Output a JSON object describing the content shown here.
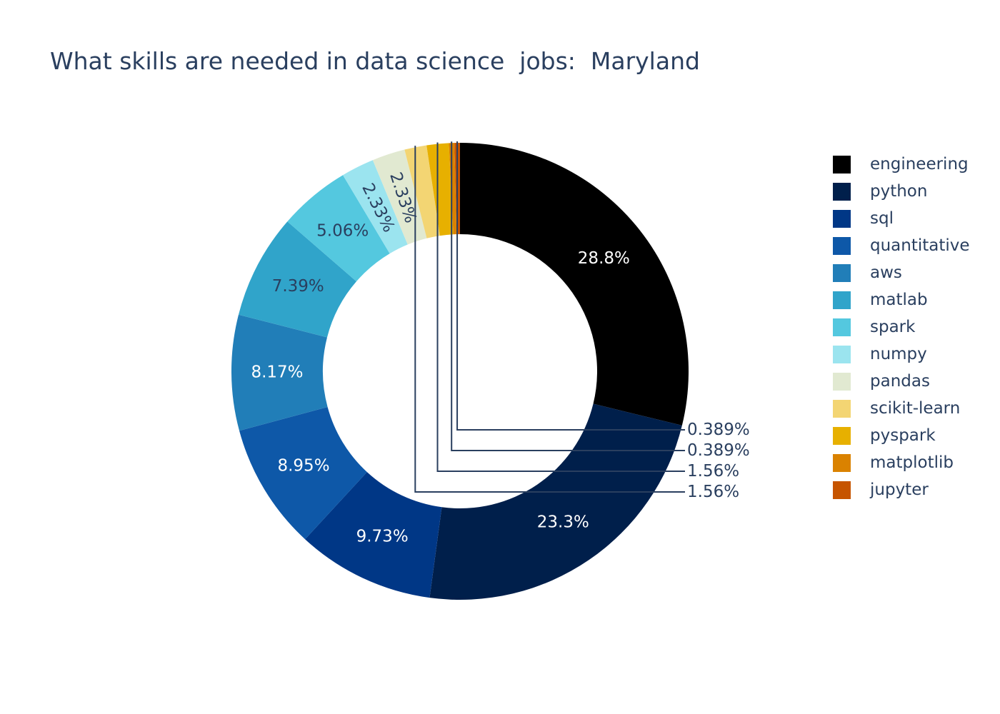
{
  "chart_data": {
    "type": "pie",
    "hole": 0.6,
    "title": "What skills are needed in data science  jobs:  Maryland",
    "slices": [
      {
        "label": "engineering",
        "percent": 28.8,
        "text": "28.8%",
        "color": "#000000",
        "text_color": "#ffffff",
        "text_position": "inside"
      },
      {
        "label": "python",
        "percent": 23.3,
        "text": "23.3%",
        "color": "#001f4b",
        "text_color": "#ffffff",
        "text_position": "inside"
      },
      {
        "label": "sql",
        "percent": 9.73,
        "text": "9.73%",
        "color": "#003786",
        "text_color": "#ffffff",
        "text_position": "inside"
      },
      {
        "label": "quantitative",
        "percent": 8.95,
        "text": "8.95%",
        "color": "#0e58a8",
        "text_color": "#ffffff",
        "text_position": "inside"
      },
      {
        "label": "aws",
        "percent": 8.17,
        "text": "8.17%",
        "color": "#217eb8",
        "text_color": "#ffffff",
        "text_position": "inside"
      },
      {
        "label": "matlab",
        "percent": 7.39,
        "text": "7.39%",
        "color": "#30a4ca",
        "text_color": "#2a3f5f",
        "text_position": "inside"
      },
      {
        "label": "spark",
        "percent": 5.06,
        "text": "5.06%",
        "color": "#54c8df",
        "text_color": "#2a3f5f",
        "text_position": "inside"
      },
      {
        "label": "numpy",
        "percent": 2.33,
        "text": "2.33%",
        "color": "#9be4ef",
        "text_color": "#2a3f5f",
        "text_position": "inside"
      },
      {
        "label": "pandas",
        "percent": 2.33,
        "text": "2.33%",
        "color": "#e1e9d1",
        "text_color": "#2a3f5f",
        "text_position": "inside"
      },
      {
        "label": "scikit-learn",
        "percent": 1.56,
        "text": "1.56%",
        "color": "#f3d573",
        "text_color": "#2a3f5f",
        "text_position": "outside"
      },
      {
        "label": "pyspark",
        "percent": 1.56,
        "text": "1.56%",
        "color": "#e7b000",
        "text_color": "#2a3f5f",
        "text_position": "outside"
      },
      {
        "label": "matplotlib",
        "percent": 0.389,
        "text": "0.389%",
        "color": "#da8200",
        "text_color": "#2a3f5f",
        "text_position": "outside"
      },
      {
        "label": "jupyter",
        "percent": 0.389,
        "text": "0.389%",
        "color": "#c65400",
        "text_color": "#2a3f5f",
        "text_position": "outside"
      }
    ],
    "legend_position": "right"
  }
}
